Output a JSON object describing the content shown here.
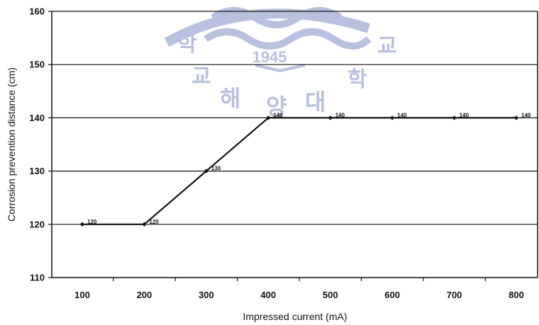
{
  "chart_data": {
    "type": "line",
    "xlabel": "Impressed current (mA)",
    "ylabel": "Corrosion prevention distance (cm)",
    "categories": [
      "100",
      "200",
      "300",
      "400",
      "500",
      "600",
      "700",
      "800"
    ],
    "series": [
      {
        "values": [
          120,
          120,
          130,
          140,
          140,
          140,
          140,
          140
        ]
      }
    ],
    "data_labels": [
      "120",
      "120",
      "130",
      "140",
      "140",
      "140",
      "140",
      "140"
    ],
    "y_ticks": [
      "110",
      "120",
      "130",
      "140",
      "150",
      "160"
    ],
    "ylim": [
      110,
      160
    ],
    "grid": "horizontal major gridlines",
    "legend": "none",
    "line_color": "#111111"
  },
  "watermark": {
    "year": "1945",
    "glyphs": [
      "학",
      "교",
      "해",
      "양",
      "대",
      "학",
      "교"
    ]
  }
}
